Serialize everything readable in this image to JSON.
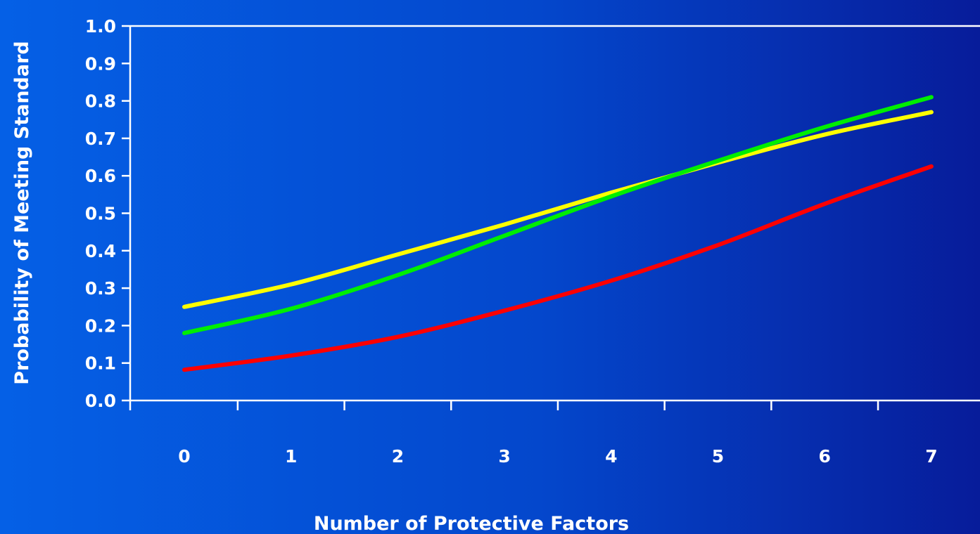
{
  "chart_data": {
    "type": "line",
    "title": "",
    "xlabel": "Number of Protective Factors",
    "ylabel": "Probability of Meeting Standard",
    "categories": [
      "0",
      "1",
      "2",
      "3",
      "4",
      "5",
      "6",
      "7"
    ],
    "y_ticks": [
      "0.0",
      "0.1",
      "0.2",
      "0.3",
      "0.4",
      "0.5",
      "0.6",
      "0.7",
      "0.8",
      "0.9",
      "1.0"
    ],
    "ylim": [
      0,
      1.0
    ],
    "grid": false,
    "legend": "none",
    "series": [
      {
        "color": "#ffff00",
        "values": [
          0.25,
          0.31,
          0.39,
          0.47,
          0.555,
          0.635,
          0.71,
          0.77
        ]
      },
      {
        "color": "#00ee00",
        "values": [
          0.18,
          0.245,
          0.335,
          0.44,
          0.545,
          0.64,
          0.73,
          0.81
        ]
      },
      {
        "color": "#ff0000",
        "values": [
          0.082,
          0.12,
          0.17,
          0.24,
          0.32,
          0.415,
          0.525,
          0.625
        ]
      }
    ]
  }
}
